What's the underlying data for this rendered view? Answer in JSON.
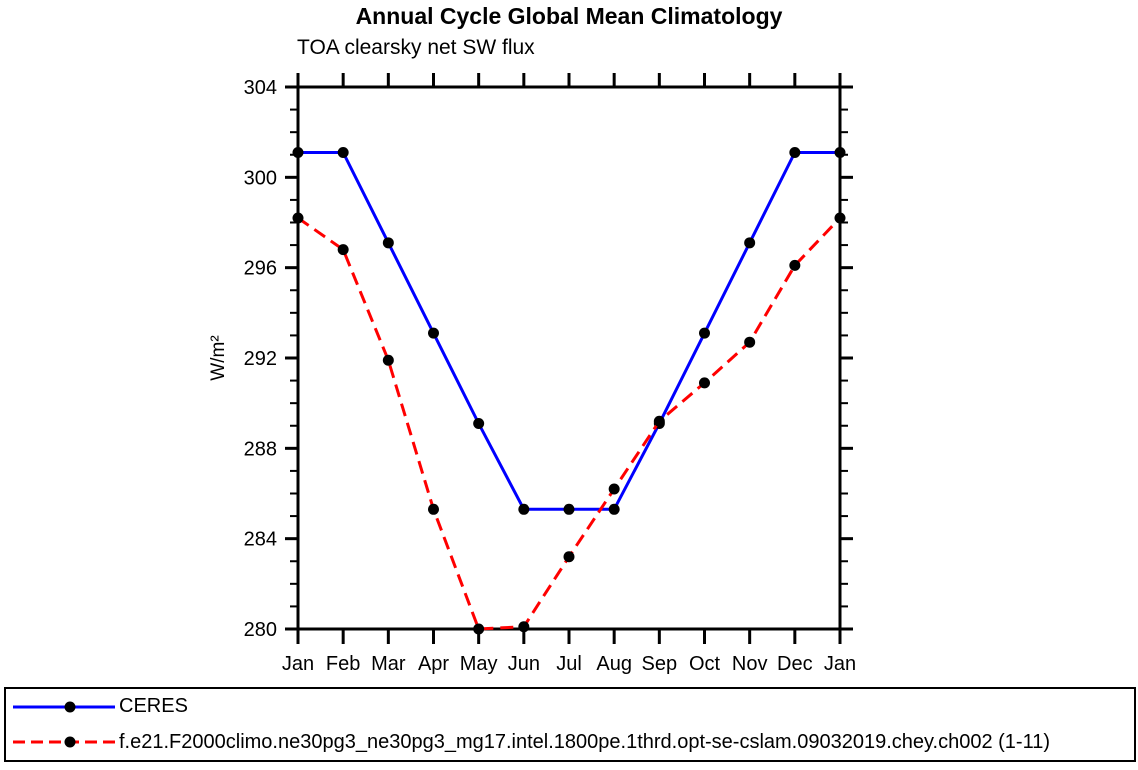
{
  "chart_data": {
    "type": "line",
    "title": "Annual Cycle Global Mean Climatology",
    "subtitle": "TOA clearsky net SW flux",
    "xlabel": "",
    "ylabel": "W/m²",
    "categories": [
      "Jan",
      "Feb",
      "Mar",
      "Apr",
      "May",
      "Jun",
      "Jul",
      "Aug",
      "Sep",
      "Oct",
      "Nov",
      "Dec",
      "Jan"
    ],
    "ylim": [
      280,
      304
    ],
    "y_major_tick_step": 4,
    "y_minor_tick_step": 1,
    "grid": false,
    "legend_position": "bottom-left-box",
    "axis_color": "#000000",
    "series": [
      {
        "name": "CERES",
        "color": "#0000ff",
        "style": "solid",
        "marker": "filled-circle",
        "marker_color": "#000000",
        "values": [
          301.1,
          301.1,
          297.1,
          293.1,
          289.1,
          285.3,
          285.3,
          285.3,
          289.1,
          293.1,
          297.1,
          301.1,
          301.1
        ]
      },
      {
        "name": "f.e21.F2000climo.ne30pg3_ne30pg3_mg17.intel.1800pe.1thrd.opt-se-cslam.09032019.chey.ch002 (1-11)",
        "color": "#ff0000",
        "style": "dashed",
        "marker": "filled-circle",
        "marker_color": "#000000",
        "values": [
          298.2,
          296.8,
          291.9,
          285.3,
          280.0,
          280.1,
          283.2,
          286.2,
          289.2,
          290.9,
          292.7,
          296.1,
          298.2
        ]
      }
    ]
  }
}
